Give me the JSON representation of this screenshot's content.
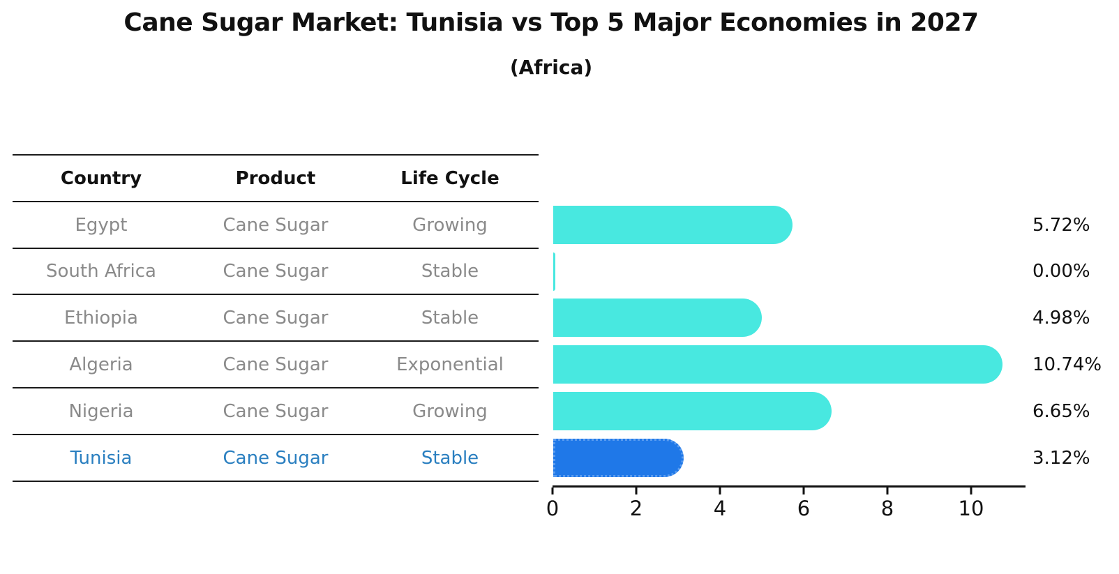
{
  "title": "Cane Sugar Market: Tunisia vs Top 5 Major Economies in 2027",
  "subtitle": "(Africa)",
  "table": {
    "headers": [
      "Country",
      "Product",
      "Life Cycle"
    ],
    "rows": [
      {
        "country": "Egypt",
        "product": "Cane Sugar",
        "life_cycle": "Growing",
        "highlight": false
      },
      {
        "country": "South Africa",
        "product": "Cane Sugar",
        "life_cycle": "Stable",
        "highlight": false
      },
      {
        "country": "Ethiopia",
        "product": "Cane Sugar",
        "life_cycle": "Stable",
        "highlight": false
      },
      {
        "country": "Algeria",
        "product": "Cane Sugar",
        "life_cycle": "Exponential",
        "highlight": false
      },
      {
        "country": "Nigeria",
        "product": "Cane Sugar",
        "life_cycle": "Growing",
        "highlight": false
      },
      {
        "country": "Tunisia",
        "product": "Cane Sugar",
        "life_cycle": "Stable",
        "highlight": true
      }
    ]
  },
  "chart_data": {
    "type": "bar",
    "orientation": "horizontal",
    "title": "Cane Sugar Market: Tunisia vs Top 5 Major Economies in 2027",
    "subtitle": "(Africa)",
    "categories": [
      "Egypt",
      "South Africa",
      "Ethiopia",
      "Algeria",
      "Nigeria",
      "Tunisia"
    ],
    "values": [
      5.72,
      0.0,
      4.98,
      10.74,
      6.65,
      3.12
    ],
    "value_labels": [
      "5.72%",
      "0.00%",
      "4.98%",
      "10.74%",
      "6.65%",
      "3.12%"
    ],
    "x_ticks": [
      0,
      2,
      4,
      6,
      8,
      10
    ],
    "xlim": [
      0,
      11.3
    ],
    "grid": false,
    "legend": false,
    "bar_color": "#48e8e0",
    "highlight_index": 5,
    "highlight_bar_color": "#1f78e8",
    "highlight_text_color": "#2a7fc0"
  }
}
